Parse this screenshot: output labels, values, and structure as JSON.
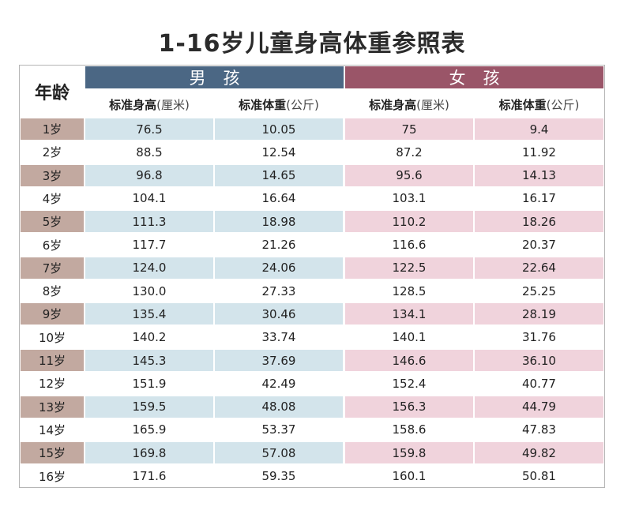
{
  "title": "1-16岁儿童身高体重参照表",
  "header": {
    "age": "年龄",
    "boy": "男孩",
    "girl": "女孩",
    "height_label": "标准身高",
    "height_unit": "(厘米)",
    "weight_label": "标准体重",
    "weight_unit": "(公斤)"
  },
  "colors": {
    "boy_band": "#4b6784",
    "girl_band": "#9a5568",
    "age_shade": "#c2a9a0",
    "boy_shade": "#d3e4eb",
    "girl_shade": "#f0d3dc"
  },
  "rows": [
    {
      "age": "1岁",
      "boy_h": "76.5",
      "boy_w": "10.05",
      "girl_h": "75",
      "girl_w": "9.4"
    },
    {
      "age": "2岁",
      "boy_h": "88.5",
      "boy_w": "12.54",
      "girl_h": "87.2",
      "girl_w": "11.92"
    },
    {
      "age": "3岁",
      "boy_h": "96.8",
      "boy_w": "14.65",
      "girl_h": "95.6",
      "girl_w": "14.13"
    },
    {
      "age": "4岁",
      "boy_h": "104.1",
      "boy_w": "16.64",
      "girl_h": "103.1",
      "girl_w": "16.17"
    },
    {
      "age": "5岁",
      "boy_h": "111.3",
      "boy_w": "18.98",
      "girl_h": "110.2",
      "girl_w": "18.26"
    },
    {
      "age": "6岁",
      "boy_h": "117.7",
      "boy_w": "21.26",
      "girl_h": "116.6",
      "girl_w": "20.37"
    },
    {
      "age": "7岁",
      "boy_h": "124.0",
      "boy_w": "24.06",
      "girl_h": "122.5",
      "girl_w": "22.64"
    },
    {
      "age": "8岁",
      "boy_h": "130.0",
      "boy_w": "27.33",
      "girl_h": "128.5",
      "girl_w": "25.25"
    },
    {
      "age": "9岁",
      "boy_h": "135.4",
      "boy_w": "30.46",
      "girl_h": "134.1",
      "girl_w": "28.19"
    },
    {
      "age": "10岁",
      "boy_h": "140.2",
      "boy_w": "33.74",
      "girl_h": "140.1",
      "girl_w": "31.76"
    },
    {
      "age": "11岁",
      "boy_h": "145.3",
      "boy_w": "37.69",
      "girl_h": "146.6",
      "girl_w": "36.10"
    },
    {
      "age": "12岁",
      "boy_h": "151.9",
      "boy_w": "42.49",
      "girl_h": "152.4",
      "girl_w": "40.77"
    },
    {
      "age": "13岁",
      "boy_h": "159.5",
      "boy_w": "48.08",
      "girl_h": "156.3",
      "girl_w": "44.79"
    },
    {
      "age": "14岁",
      "boy_h": "165.9",
      "boy_w": "53.37",
      "girl_h": "158.6",
      "girl_w": "47.83"
    },
    {
      "age": "15岁",
      "boy_h": "169.8",
      "boy_w": "57.08",
      "girl_h": "159.8",
      "girl_w": "49.82"
    },
    {
      "age": "16岁",
      "boy_h": "171.6",
      "boy_w": "59.35",
      "girl_h": "160.1",
      "girl_w": "50.81"
    }
  ]
}
